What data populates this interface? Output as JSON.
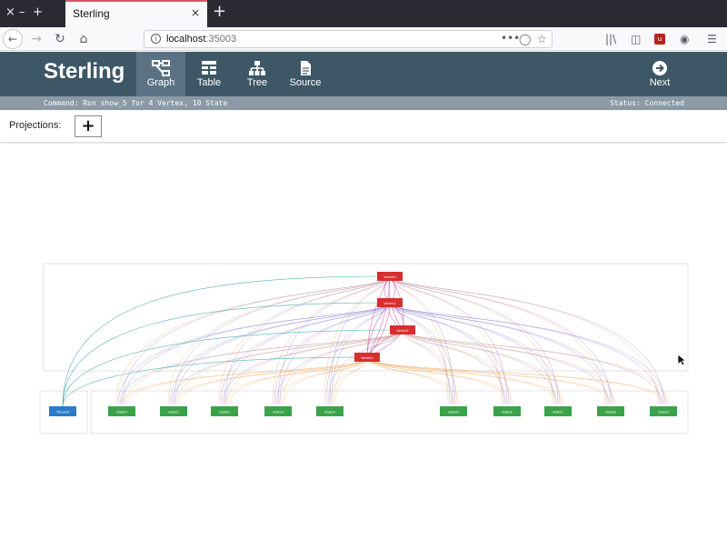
{
  "browser": {
    "window_controls": {
      "close": "×",
      "minimize": "–",
      "maximize": "+"
    },
    "tab": {
      "title": "Sterling",
      "close": "×"
    },
    "new_tab": "+",
    "url": {
      "host": "localhost",
      "port": ":35003"
    },
    "url_actions": [
      "•••"
    ]
  },
  "app": {
    "brand": "Sterling",
    "nav": [
      {
        "label": "Graph",
        "icon": "graph-icon",
        "active": true
      },
      {
        "label": "Table",
        "icon": "table-icon",
        "active": false
      },
      {
        "label": "Tree",
        "icon": "tree-icon",
        "active": false
      },
      {
        "label": "Source",
        "icon": "source-icon",
        "active": false
      }
    ],
    "next": {
      "label": "Next",
      "icon": "next-arrow-icon"
    },
    "colors": {
      "header": "#3e5767",
      "active_nav": "#5a7284",
      "statusbar": "#8b9aa6"
    }
  },
  "status": {
    "command": "Command: Run show_5 for 4 Vertex, 10 State",
    "status": "Status: Connected"
  },
  "projections": {
    "label": "Projections:",
    "add": "+"
  },
  "graph": {
    "colors": {
      "vertex": "#d62f2f",
      "state": "#3aa34a",
      "univ": "#2a7bc9",
      "edge_orange": "#f0a050",
      "edge_purple": "#7b68c8",
      "edge_teal": "#2aa198",
      "edge_magenta": "#c2399f"
    },
    "vertex_nodes": [
      "Vertex3",
      "Vertex2",
      "Vertex1",
      "Vertex0"
    ],
    "univ_node": "TSLast0",
    "state_nodes_left": [
      "State0",
      "State1",
      "State2",
      "State3",
      "State4"
    ],
    "state_nodes_right": [
      "State5",
      "State6",
      "State7",
      "State8",
      "State9"
    ]
  }
}
